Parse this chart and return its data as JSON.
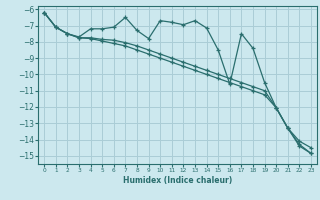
{
  "xlabel": "Humidex (Indice chaleur)",
  "background_color": "#cce8ee",
  "grid_color": "#aacdd6",
  "line_color": "#2a6e6e",
  "xlim": [
    -0.5,
    23.5
  ],
  "ylim": [
    -15.5,
    -5.8
  ],
  "xticks": [
    0,
    1,
    2,
    3,
    4,
    5,
    6,
    7,
    8,
    9,
    10,
    11,
    12,
    13,
    14,
    15,
    16,
    17,
    18,
    19,
    20,
    21,
    22,
    23
  ],
  "yticks": [
    -6,
    -7,
    -8,
    -9,
    -10,
    -11,
    -12,
    -13,
    -14,
    -15
  ],
  "line1_x": [
    0,
    1,
    2,
    3,
    4,
    5,
    6,
    7,
    8,
    9,
    10,
    11,
    12,
    13,
    14,
    15,
    16,
    17,
    18,
    19,
    20,
    21,
    22,
    23
  ],
  "line1_y": [
    -6.2,
    -7.1,
    -7.5,
    -7.7,
    -7.2,
    -7.2,
    -7.1,
    -6.5,
    -7.3,
    -7.8,
    -6.7,
    -6.8,
    -6.95,
    -6.7,
    -7.15,
    -8.5,
    -10.6,
    -7.5,
    -8.4,
    -10.5,
    -12.05,
    -13.3,
    -14.4,
    -14.85
  ],
  "line2_x": [
    0,
    1,
    2,
    3,
    4,
    5,
    6,
    7,
    8,
    9,
    10,
    11,
    12,
    13,
    14,
    15,
    16,
    17,
    18,
    19,
    20,
    21,
    22,
    23
  ],
  "line2_y": [
    -6.2,
    -7.1,
    -7.5,
    -7.75,
    -7.75,
    -7.85,
    -7.9,
    -8.05,
    -8.25,
    -8.5,
    -8.75,
    -9.0,
    -9.25,
    -9.5,
    -9.75,
    -10.0,
    -10.25,
    -10.5,
    -10.75,
    -11.0,
    -12.05,
    -13.3,
    -14.1,
    -14.5
  ],
  "line3_x": [
    0,
    1,
    2,
    3,
    4,
    5,
    6,
    7,
    8,
    9,
    10,
    11,
    12,
    13,
    14,
    15,
    16,
    17,
    18,
    19,
    20,
    21,
    22,
    23
  ],
  "line3_y": [
    -6.2,
    -7.1,
    -7.5,
    -7.75,
    -7.8,
    -7.95,
    -8.1,
    -8.25,
    -8.5,
    -8.75,
    -9.0,
    -9.25,
    -9.5,
    -9.75,
    -10.0,
    -10.25,
    -10.5,
    -10.75,
    -11.0,
    -11.25,
    -12.05,
    -13.3,
    -14.3,
    -14.85
  ]
}
